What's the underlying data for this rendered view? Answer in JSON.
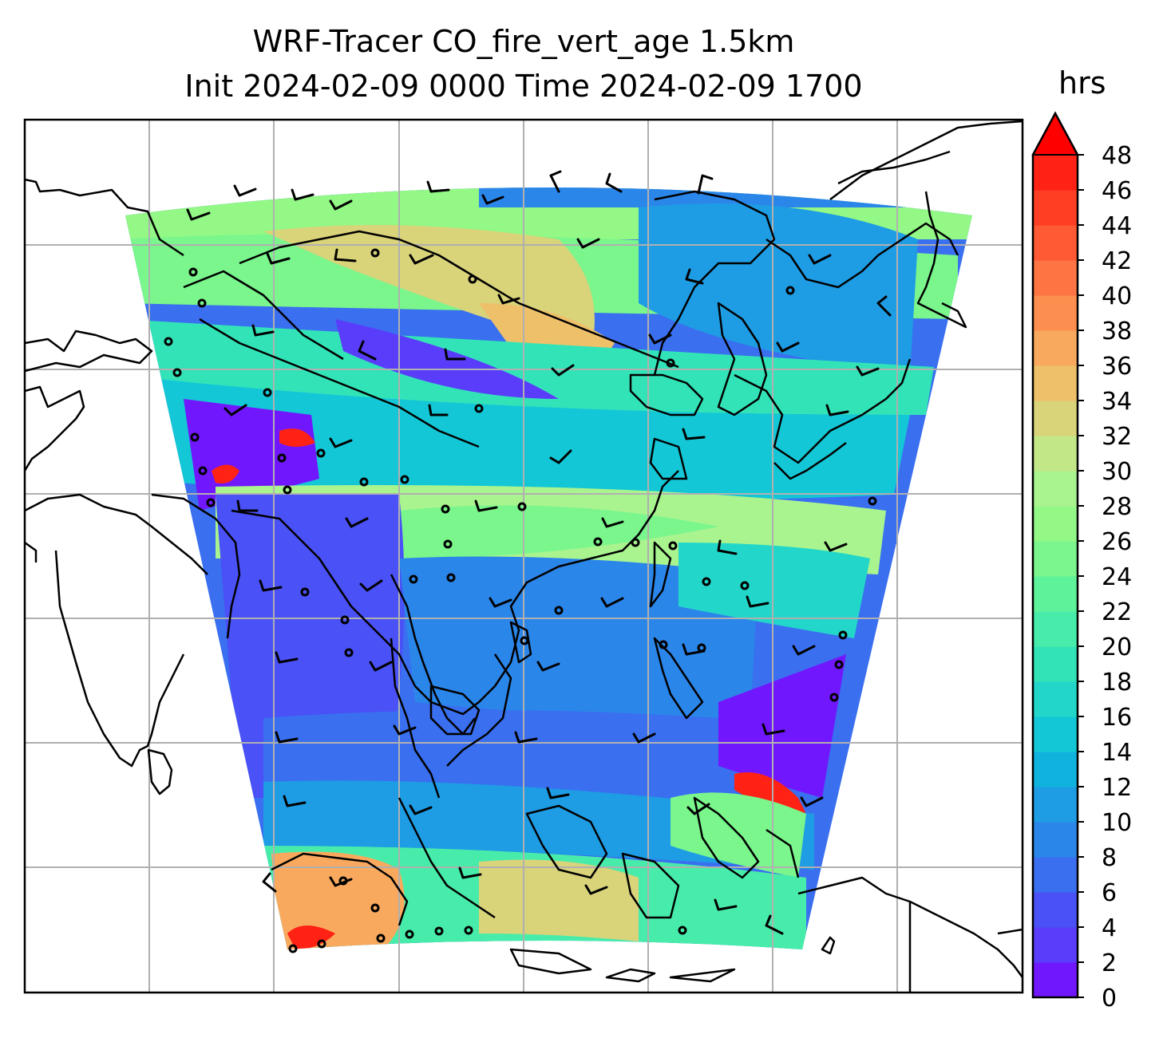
{
  "title": {
    "line1": "WRF-Tracer CO_fire_vert_age 1.5km",
    "line2": "Init 2024-02-09 0000 Time 2024-02-09 1700"
  },
  "colorbar": {
    "unit": "hrs",
    "extend": "max",
    "min": 0,
    "max": 48,
    "tick_labels": [
      "0",
      "2",
      "4",
      "6",
      "8",
      "10",
      "12",
      "14",
      "16",
      "18",
      "20",
      "22",
      "24",
      "26",
      "28",
      "30",
      "32",
      "34",
      "36",
      "38",
      "40",
      "42",
      "44",
      "46",
      "48"
    ],
    "colors": [
      "#7117fd",
      "#5a3dfb",
      "#4a51f6",
      "#3a6ff0",
      "#2b86ea",
      "#1e9ce4",
      "#10b3dd",
      "#14c7d6",
      "#22d7c9",
      "#33e3b8",
      "#48ecaa",
      "#5ef29b",
      "#7af68c",
      "#93f885",
      "#a9f48f",
      "#c2e787",
      "#d9d37a",
      "#eec06a",
      "#f9a95e",
      "#fc8f4f",
      "#fe7443",
      "#ff5a33",
      "#ff3e24",
      "#ff2215"
    ],
    "overflow_color": "#ff0000"
  },
  "map": {
    "gridlines": true,
    "gridline_color": "#b0b0b0",
    "land_outline_color": "#000000",
    "legend": "none"
  }
}
